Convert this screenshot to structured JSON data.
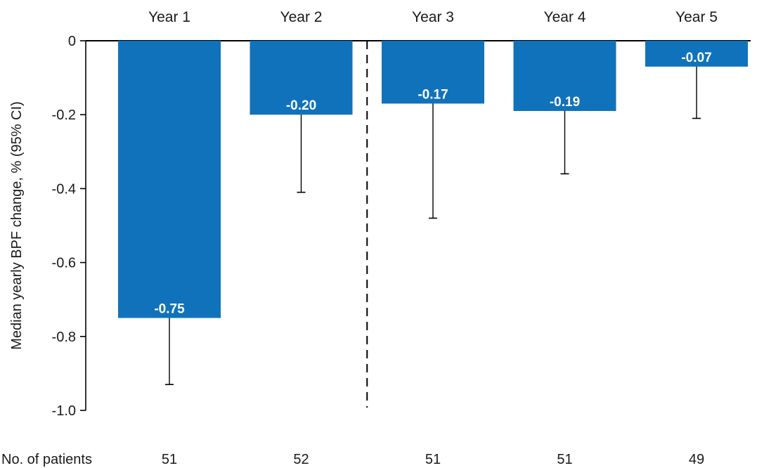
{
  "chart_data": {
    "type": "bar",
    "categories": [
      "Year 1",
      "Year 2",
      "Year 3",
      "Year 4",
      "Year 5"
    ],
    "values": [
      -0.75,
      -0.2,
      -0.17,
      -0.19,
      -0.07
    ],
    "data_labels": [
      "-0.75",
      "-0.20",
      "-0.17",
      "-0.19",
      "-0.07"
    ],
    "ci_lower": [
      -0.93,
      -0.41,
      -0.48,
      -0.36,
      -0.21
    ],
    "ylabel": "Median yearly BPF change, % (95% CI)",
    "ylim": [
      -1.0,
      0
    ],
    "yticks": [
      0,
      -0.2,
      -0.4,
      -0.6,
      -0.8,
      -1.0
    ],
    "ytick_labels": [
      "0",
      "-0.2",
      "-0.4",
      "-0.6",
      "-0.8",
      "-1.0"
    ],
    "patients_label": "No. of patients",
    "patients": [
      "51",
      "52",
      "51",
      "51",
      "49"
    ],
    "divider_after_category": 2,
    "grid": false,
    "bar_color": "#1072bb"
  }
}
